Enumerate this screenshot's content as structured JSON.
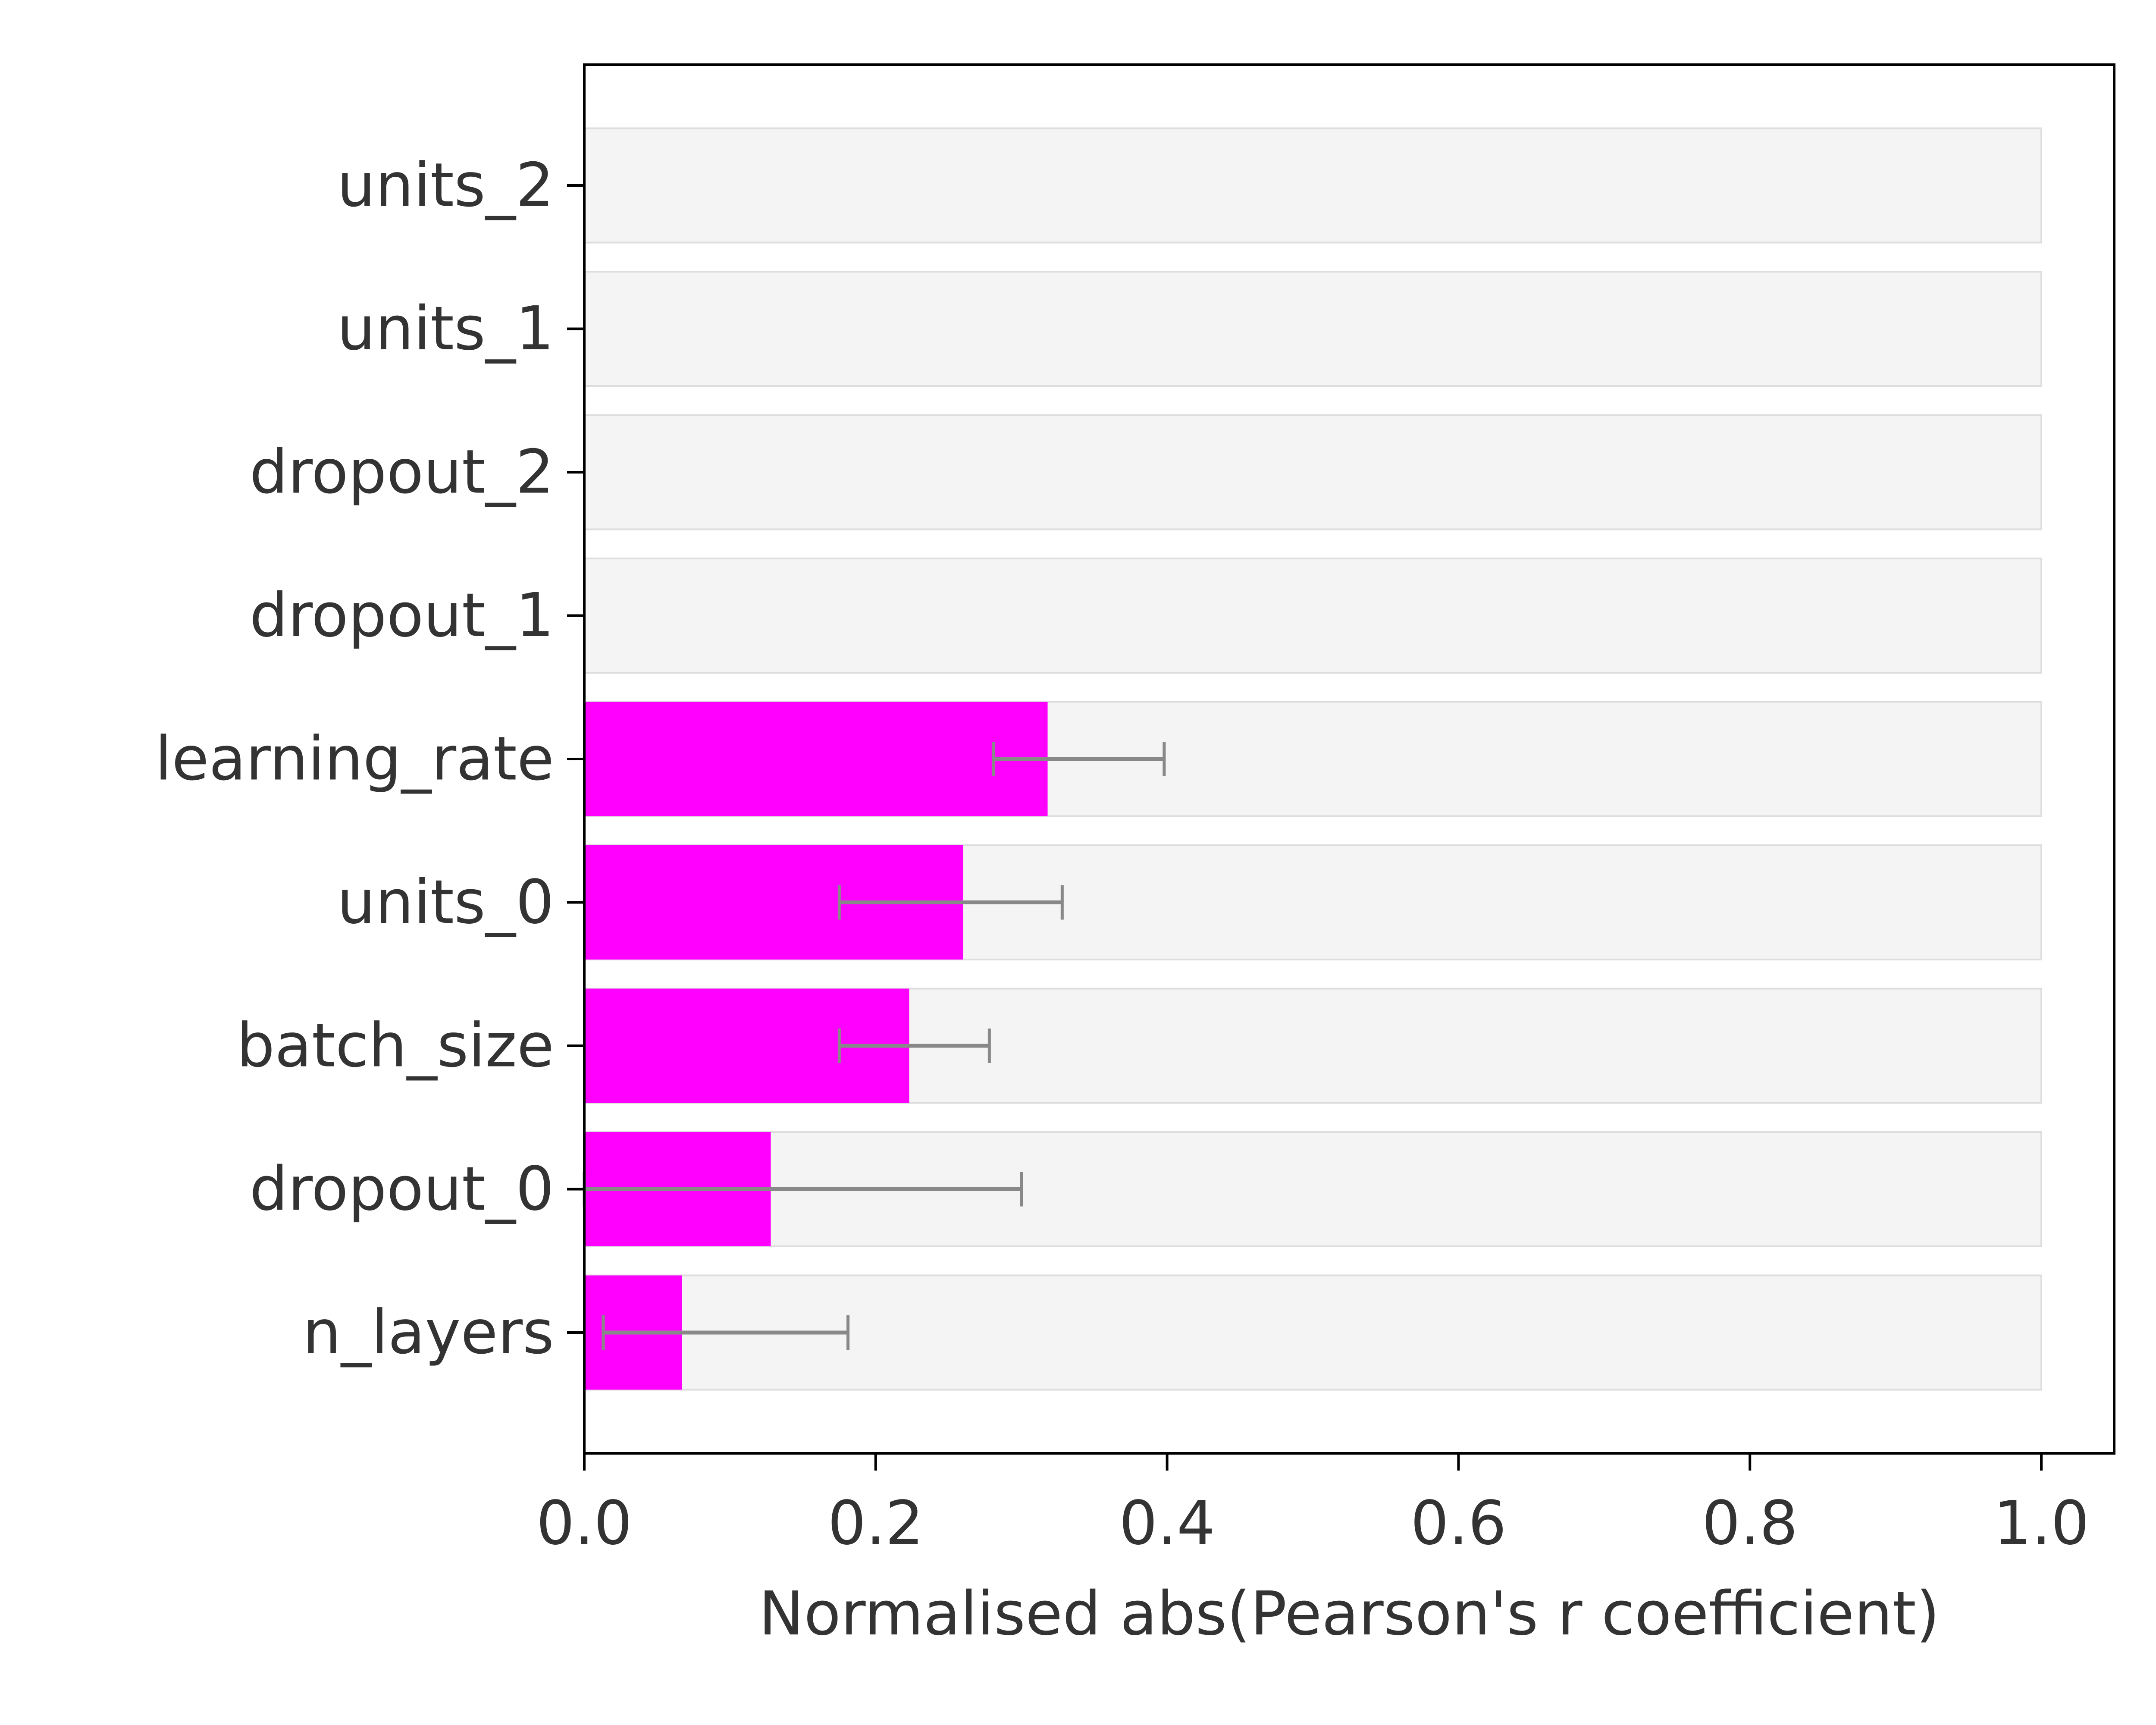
{
  "chart_data": {
    "type": "bar",
    "orientation": "horizontal",
    "title": "",
    "xlabel": "Normalised abs(Pearson's r coefficient)",
    "ylabel": "",
    "xlim": [
      0.0,
      1.05
    ],
    "x_ticks": [
      0.0,
      0.2,
      0.4,
      0.6,
      0.8,
      1.0
    ],
    "x_tick_labels": [
      "0.0",
      "0.2",
      "0.4",
      "0.6",
      "0.8",
      "1.0"
    ],
    "grid": false,
    "categories": [
      "units_2",
      "units_1",
      "dropout_2",
      "dropout_1",
      "learning_rate",
      "units_0",
      "batch_size",
      "dropout_0",
      "n_layers"
    ],
    "values": [
      0.0,
      0.0,
      0.0,
      0.0,
      0.318,
      0.26,
      0.223,
      0.128,
      0.067
    ],
    "error_low": [
      null,
      null,
      null,
      null,
      0.281,
      0.175,
      0.175,
      0.0,
      0.013
    ],
    "error_high": [
      null,
      null,
      null,
      null,
      0.398,
      0.328,
      0.278,
      0.3,
      0.181
    ],
    "background_value": 1.0,
    "colors": {
      "bar": "#ff00ff",
      "background_bar": "#f4f4f4",
      "background_bar_edge": "#dddddd",
      "error_bar": "#888888",
      "axis": "#000000",
      "text": "#333333"
    }
  }
}
